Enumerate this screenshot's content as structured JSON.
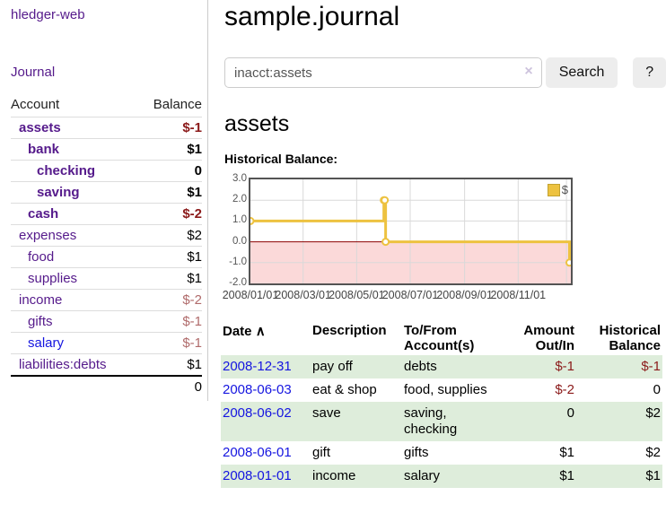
{
  "colors": {
    "purple_link": "#551a8b",
    "blue_link": "#1515e0",
    "negative_strong": "#8b1a1a",
    "negative_soft": "#b06b6b",
    "row_stripe_green": "#deeddb",
    "chart_line_yellow": "#edc240",
    "chart_negative_fill": "#fbd9d9",
    "chart_zero_line": "#8b0000",
    "chart_grid": "#d9d9d9",
    "chart_border": "#545454",
    "button_bg": "#ededed",
    "input_border": "#cccccc",
    "divider": "#cccccc"
  },
  "sidebar": {
    "app_title": "hledger-web",
    "journal_link": "Journal",
    "accounts_table": {
      "headers": {
        "account": "Account",
        "balance": "Balance"
      },
      "rows": [
        {
          "name": "assets",
          "depth": 0,
          "bold": true,
          "balance": "$-1",
          "balance_class": "neg-strong",
          "link_class": "purple"
        },
        {
          "name": "bank",
          "depth": 1,
          "bold": true,
          "balance": "$1",
          "balance_class": "",
          "link_class": "purple"
        },
        {
          "name": "checking",
          "depth": 2,
          "bold": true,
          "balance": "0",
          "balance_class": "",
          "link_class": "purple"
        },
        {
          "name": "saving",
          "depth": 2,
          "bold": true,
          "balance": "$1",
          "balance_class": "",
          "link_class": "purple"
        },
        {
          "name": "cash",
          "depth": 1,
          "bold": true,
          "balance": "$-2",
          "balance_class": "neg-strong",
          "link_class": "purple"
        },
        {
          "name": "expenses",
          "depth": 0,
          "bold": false,
          "balance": "$2",
          "balance_class": "",
          "link_class": "purple"
        },
        {
          "name": "food",
          "depth": 1,
          "bold": false,
          "balance": "$1",
          "balance_class": "",
          "link_class": "purple"
        },
        {
          "name": "supplies",
          "depth": 1,
          "bold": false,
          "balance": "$1",
          "balance_class": "",
          "link_class": "purple"
        },
        {
          "name": "income",
          "depth": 0,
          "bold": false,
          "balance": "$-2",
          "balance_class": "neg-soft",
          "link_class": "purple"
        },
        {
          "name": "gifts",
          "depth": 1,
          "bold": false,
          "balance": "$-1",
          "balance_class": "neg-soft",
          "link_class": "purple"
        },
        {
          "name": "salary",
          "depth": 1,
          "bold": false,
          "balance": "$-1",
          "balance_class": "neg-soft",
          "link_class": "blue"
        },
        {
          "name": "liabilities:debts",
          "depth": 0,
          "bold": false,
          "balance": "$1",
          "balance_class": "",
          "link_class": "purple"
        }
      ],
      "total": "0"
    }
  },
  "main": {
    "title": "sample.journal",
    "search": {
      "value": "inacct:assets",
      "clear_icon": "×",
      "button_label": "Search",
      "help_label": "?"
    },
    "account_heading": "assets",
    "chart_title": "Historical Balance:",
    "register_table": {
      "headers": {
        "date": "Date",
        "sort_icon": "∧",
        "description": "Description",
        "accounts": "To/From Account(s)",
        "amount": "Amount Out/In",
        "balance": "Historical Balance"
      },
      "rows": [
        {
          "date": "2008-12-31",
          "description": "pay off",
          "accounts": "debts",
          "amount": "$-1",
          "amount_class": "neg",
          "balance": "$-1",
          "balance_class": "neg"
        },
        {
          "date": "2008-06-03",
          "description": "eat & shop",
          "accounts": "food, supplies",
          "amount": "$-2",
          "amount_class": "neg",
          "balance": "0",
          "balance_class": ""
        },
        {
          "date": "2008-06-02",
          "description": "save",
          "accounts": "saving, checking",
          "amount": "0",
          "amount_class": "",
          "balance": "$2",
          "balance_class": ""
        },
        {
          "date": "2008-06-01",
          "description": "gift",
          "accounts": "gifts",
          "amount": "$1",
          "amount_class": "",
          "balance": "$2",
          "balance_class": ""
        },
        {
          "date": "2008-01-01",
          "description": "income",
          "accounts": "salary",
          "amount": "$1",
          "amount_class": "",
          "balance": "$1",
          "balance_class": ""
        }
      ]
    }
  },
  "chart_data": {
    "type": "line",
    "step": true,
    "title": "Historical Balance:",
    "xlabel": "",
    "ylabel": "",
    "xlim_days": [
      0,
      365
    ],
    "ylim": [
      -2,
      3
    ],
    "grid": true,
    "negative_region_fill": true,
    "legend": {
      "label": "$",
      "position": "top-right"
    },
    "series": [
      {
        "name": "$",
        "points": [
          {
            "date": "2008-01-01",
            "day": 0,
            "value": 1
          },
          {
            "date": "2008-06-01",
            "day": 152,
            "value": 2
          },
          {
            "date": "2008-06-02",
            "day": 153,
            "value": 2
          },
          {
            "date": "2008-06-03",
            "day": 154,
            "value": 0
          },
          {
            "date": "2008-12-31",
            "day": 365,
            "value": -1
          }
        ]
      }
    ],
    "xticks": [
      {
        "day": 0,
        "label": "2008/01/01"
      },
      {
        "day": 60,
        "label": "2008/03/01"
      },
      {
        "day": 121,
        "label": "2008/05/01"
      },
      {
        "day": 182,
        "label": "2008/07/01"
      },
      {
        "day": 244,
        "label": "2008/09/01"
      },
      {
        "day": 305,
        "label": "2008/11/01"
      },
      {
        "day": 360,
        "label": ""
      }
    ],
    "yticks": [
      3.0,
      2.0,
      1.0,
      0.0,
      -1.0,
      -2.0
    ]
  }
}
